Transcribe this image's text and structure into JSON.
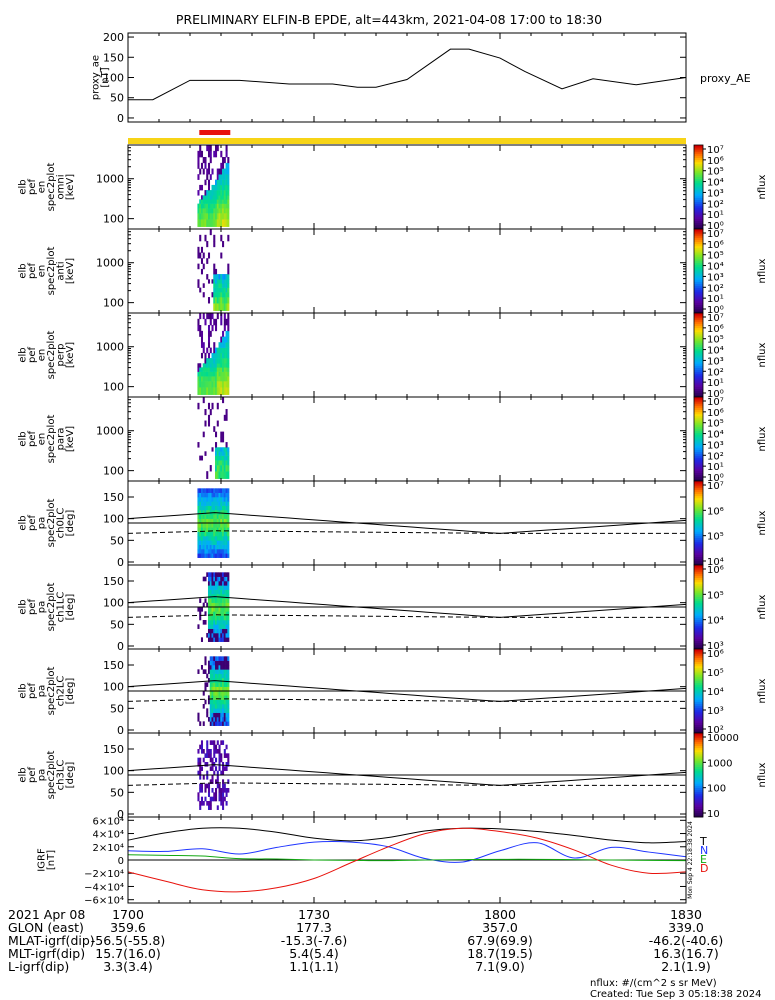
{
  "title": "PRELIMINARY ELFIN-B EPDE, alt=443km, 2021-04-08 17:00 to 18:30",
  "colors": {
    "science_bar": "#f7d417",
    "science_zone": "#e8120c",
    "igrf_T": "#000000",
    "igrf_N": "#1f35ff",
    "igrf_E": "#12a812",
    "igrf_D": "#e8120c"
  },
  "chart_data": [
    {
      "id": "proxy_ae",
      "type": "line",
      "ylabel": "proxy_ae\n[nT]",
      "legend": "proxy_AE",
      "ylim": [
        -10,
        210
      ],
      "yticks": [
        "0",
        "50",
        "100",
        "150",
        "200"
      ],
      "x": [
        0,
        4,
        10,
        18,
        26,
        33,
        37,
        40,
        45,
        52,
        55,
        60,
        64,
        70,
        75,
        82,
        90
      ],
      "values": [
        45,
        45,
        93,
        93,
        84,
        84,
        76,
        76,
        95,
        170,
        170,
        148,
        115,
        72,
        97,
        82,
        100
      ]
    },
    {
      "id": "omni",
      "type": "heatmap",
      "ylabel": "elb\npef\nen\nspec2plot\nomni\n[keV]",
      "yticks": [
        "100",
        "1000"
      ],
      "colorbar_label": "nflux",
      "colorbar_ticks": [
        "10⁰",
        "10¹",
        "10²",
        "10³",
        "10⁴",
        "10⁵",
        "10⁶",
        "10⁷"
      ]
    },
    {
      "id": "anti",
      "type": "heatmap",
      "ylabel": "elb\npef\nen\nspec2plot\nanti\n[keV]",
      "yticks": [
        "100",
        "1000"
      ],
      "colorbar_label": "nflux",
      "colorbar_ticks": [
        "10⁰",
        "10¹",
        "10²",
        "10³",
        "10⁴",
        "10⁵",
        "10⁶",
        "10⁷"
      ]
    },
    {
      "id": "perp",
      "type": "heatmap",
      "ylabel": "elb\npef\nen\nspec2plot\nperp\n[keV]",
      "yticks": [
        "100",
        "1000"
      ],
      "colorbar_label": "nflux",
      "colorbar_ticks": [
        "10⁰",
        "10¹",
        "10²",
        "10³",
        "10⁴",
        "10⁵",
        "10⁶",
        "10⁷"
      ]
    },
    {
      "id": "para",
      "type": "heatmap",
      "ylabel": "elb\npef\nen\nspec2plot\npara\n[keV]",
      "yticks": [
        "100",
        "1000"
      ],
      "colorbar_label": "nflux",
      "colorbar_ticks": [
        "10⁰",
        "10¹",
        "10²",
        "10³",
        "10⁴",
        "10⁵",
        "10⁶",
        "10⁷"
      ]
    },
    {
      "id": "ch0",
      "type": "heatmap",
      "ylabel": "elb\npef\npa\nspec2plot\nch0LC\n[deg]",
      "yticks": [
        "0",
        "50",
        "100",
        "150"
      ],
      "colorbar_label": "nflux",
      "colorbar_ticks": [
        "10⁴",
        "10⁵",
        "10⁶",
        "10⁷"
      ]
    },
    {
      "id": "ch1",
      "type": "heatmap",
      "ylabel": "elb\npef\npa\nspec2plot\nch1LC\n[deg]",
      "yticks": [
        "0",
        "50",
        "100",
        "150"
      ],
      "colorbar_label": "nflux",
      "colorbar_ticks": [
        "10³",
        "10⁴",
        "10⁵",
        "10⁶"
      ]
    },
    {
      "id": "ch2",
      "type": "heatmap",
      "ylabel": "elb\npef\npa\nspec2plot\nch2LC\n[deg]",
      "yticks": [
        "0",
        "50",
        "100",
        "150"
      ],
      "colorbar_label": "nflux",
      "colorbar_ticks": [
        "10²",
        "10³",
        "10⁴",
        "10⁵",
        "10⁶"
      ]
    },
    {
      "id": "ch3",
      "type": "heatmap",
      "ylabel": "elb\npef\npa\nspec2plot\nch3LC\n[deg]",
      "yticks": [
        "0",
        "50",
        "100",
        "150"
      ],
      "colorbar_label": "nflux",
      "colorbar_ticks": [
        "10",
        "100",
        "1000",
        "10000"
      ]
    },
    {
      "id": "igrf",
      "type": "line",
      "ylabel": "IGRF\n[nT]",
      "ylim": [
        -65000,
        65000
      ],
      "yticks": [
        "−6×10⁴",
        "−4×10⁴",
        "−2×10⁴",
        "0",
        "2×10⁴",
        "4×10⁴",
        "6×10⁴"
      ],
      "legend": [
        "T",
        "N",
        "E",
        "D"
      ],
      "side_label": "Mon Sep  4 22:18:38 2024",
      "x": [
        0,
        6,
        12,
        18,
        24,
        30,
        36,
        42,
        48,
        54,
        60,
        66,
        72,
        78,
        84,
        90
      ],
      "series": [
        {
          "name": "T",
          "values": [
            30000,
            41000,
            48000,
            48000,
            42000,
            33000,
            29000,
            34000,
            44000,
            48000,
            47000,
            43000,
            37000,
            30000,
            26000,
            28000
          ]
        },
        {
          "name": "N",
          "values": [
            14000,
            13000,
            17000,
            9000,
            19000,
            27000,
            27000,
            20000,
            2000,
            -3000,
            14000,
            26000,
            3000,
            19000,
            12000,
            5000
          ]
        },
        {
          "name": "E",
          "values": [
            8000,
            7000,
            6000,
            2000,
            1500,
            0,
            -500,
            -1000,
            0,
            500,
            1000,
            1000,
            500,
            0,
            -500,
            -1000
          ]
        },
        {
          "name": "D",
          "values": [
            -18000,
            -32000,
            -45000,
            -48000,
            -42000,
            -28000,
            -4000,
            20000,
            40000,
            48000,
            43000,
            33000,
            15000,
            -8000,
            -20000,
            -18000
          ]
        }
      ]
    }
  ],
  "time_axis": {
    "ticks": [
      "1700",
      "1730",
      "1800",
      "1830"
    ],
    "tick_minutes": [
      0,
      30,
      60,
      90
    ],
    "row_labels": [
      "2021 Apr 08",
      "GLON (east)",
      "MLAT-igrf(dip)",
      "MLT-igrf(dip)",
      "L-igrf(dip)"
    ],
    "columns": [
      [
        "",
        "359.6",
        "-56.5(-55.8)",
        "15.7(16.0)",
        "3.3(3.4)"
      ],
      [
        "",
        "177.3",
        "-15.3(-7.6)",
        "5.4(5.4)",
        "1.1(1.1)"
      ],
      [
        "",
        "357.0",
        "67.9(69.9)",
        "18.7(19.5)",
        "7.1(9.0)"
      ],
      [
        "",
        "339.0",
        "-46.2(-40.6)",
        "16.3(16.7)",
        "2.1(1.9)"
      ]
    ]
  },
  "footer": {
    "units": "nflux: #/(cm^2 s sr MeV)",
    "created": "Created: Tue Sep  3 05:18:38 2024"
  }
}
